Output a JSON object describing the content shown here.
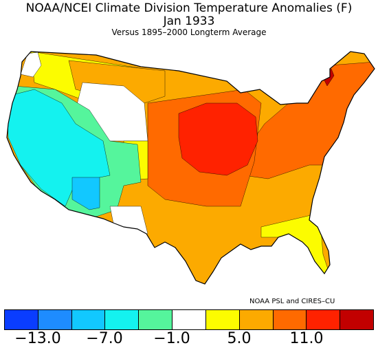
{
  "header": {
    "title": "NOAA/NCEI Climate Division Temperature Anomalies (F)",
    "period": "Jan 1933",
    "baseline": "Versus 1895–2000 Longterm Average"
  },
  "credit": "NOAA PSL and CIRES–CU",
  "legend": {
    "colors": [
      "#0a3dff",
      "#1e8cff",
      "#12c8ff",
      "#14f2ef",
      "#55f59c",
      "#ffffff",
      "#fcfc00",
      "#fcaa00",
      "#ff6a00",
      "#ff2200",
      "#c20000"
    ],
    "ticks": [
      "−13.0",
      "−7.0",
      "−1.0",
      "5.0",
      "11.0"
    ]
  },
  "map_colors": {
    "cyan": "#14f2ef",
    "light_blue": "#12c8ff",
    "mint": "#55f59c",
    "white": "#ffffff",
    "yellow": "#fcfc00",
    "orange": "#fcaa00",
    "dark_orange": "#ff6a00",
    "red": "#ff2200",
    "dark_red": "#c20000"
  }
}
